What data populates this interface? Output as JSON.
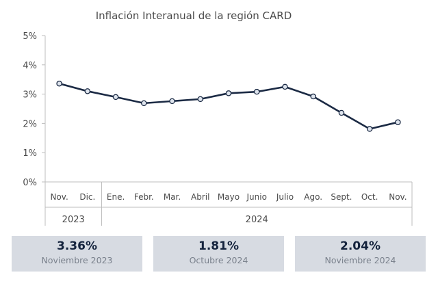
{
  "colors": {
    "line": "#1b2a44",
    "marker_fill": "#dfe5ee",
    "axis": "#bdbdbd",
    "box": "#d7dbe2",
    "text": "#4a4a4a"
  },
  "chart_data": {
    "type": "line",
    "title": "Inflación Interanual de la región CARD",
    "categories": [
      "Nov.",
      "Dic.",
      "Ene.",
      "Febr.",
      "Mar.",
      "Abril",
      "Mayo",
      "Junio",
      "Julio",
      "Ago.",
      "Sept.",
      "Oct.",
      "Nov."
    ],
    "year_groups": [
      {
        "label": "2023",
        "count": 2
      },
      {
        "label": "2024",
        "count": 11
      }
    ],
    "series": [
      {
        "values": [
          3.36,
          3.1,
          2.9,
          2.69,
          2.76,
          2.83,
          3.03,
          3.08,
          3.25,
          2.92,
          2.36,
          1.81,
          2.04
        ]
      }
    ],
    "ylim": [
      0,
      5
    ],
    "yticks": [
      "0%",
      "1%",
      "2%",
      "3%",
      "4%",
      "5%"
    ],
    "grid": false,
    "legend": "none"
  },
  "summary": [
    {
      "value": "3.36%",
      "label": "Noviembre 2023"
    },
    {
      "value": "1.81%",
      "label": "Octubre 2024"
    },
    {
      "value": "2.04%",
      "label": "Noviembre 2024"
    }
  ]
}
